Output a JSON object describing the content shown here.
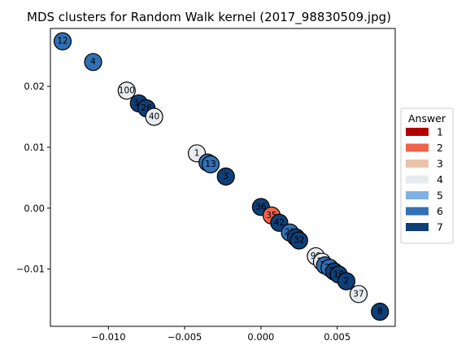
{
  "chart_data": {
    "type": "scatter",
    "title": "MDS clusters for Random Walk kernel (2017_98830509.jpg)",
    "xlabel": "",
    "ylabel": "",
    "xlim": [
      -0.0138,
      0.0088
    ],
    "ylim": [
      -0.0194,
      0.0295
    ],
    "xticks": [
      -0.01,
      -0.005,
      0.0,
      0.005
    ],
    "xtick_labels": [
      "−0.010",
      "−0.005",
      "0.000",
      "0.005"
    ],
    "yticks": [
      -0.01,
      0.0,
      0.01,
      0.02
    ],
    "ytick_labels": [
      "−0.01",
      "0.00",
      "0.01",
      "0.02"
    ],
    "grid": false,
    "legend": {
      "title": "Answer",
      "placement": "center-right outside",
      "entries": [
        {
          "label": "1",
          "color": "#b30000"
        },
        {
          "label": "2",
          "color": "#f0624a"
        },
        {
          "label": "3",
          "color": "#eac2aa"
        },
        {
          "label": "4",
          "color": "#e8ecf1"
        },
        {
          "label": "5",
          "color": "#7fb0e1"
        },
        {
          "label": "6",
          "color": "#3170b3"
        },
        {
          "label": "7",
          "color": "#0f3f77"
        }
      ]
    },
    "points": [
      {
        "label": "12",
        "x": -0.013,
        "y": 0.0274,
        "answer": "6"
      },
      {
        "label": "4",
        "x": -0.011,
        "y": 0.024,
        "answer": "6"
      },
      {
        "label": "100",
        "x": -0.0088,
        "y": 0.0193,
        "answer": "4"
      },
      {
        "label": "34",
        "x": -0.008,
        "y": 0.0172,
        "answer": "7"
      },
      {
        "label": "26",
        "x": -0.0075,
        "y": 0.0164,
        "answer": "7"
      },
      {
        "label": "40",
        "x": -0.007,
        "y": 0.015,
        "answer": "4"
      },
      {
        "label": "1",
        "x": -0.0042,
        "y": 0.009,
        "answer": "4"
      },
      {
        "label": "9",
        "x": -0.0035,
        "y": 0.0075,
        "answer": "6"
      },
      {
        "label": "13",
        "x": -0.0033,
        "y": 0.0072,
        "answer": "6"
      },
      {
        "label": "3",
        "x": -0.0023,
        "y": 0.0052,
        "answer": "7"
      },
      {
        "label": "36",
        "x": 0.0,
        "y": 0.0002,
        "answer": "7"
      },
      {
        "label": "35",
        "x": 0.0007,
        "y": -0.0012,
        "answer": "2"
      },
      {
        "label": "42",
        "x": 0.0012,
        "y": -0.0024,
        "answer": "7"
      },
      {
        "label": "29",
        "x": 0.0019,
        "y": -0.004,
        "answer": "6"
      },
      {
        "label": "30",
        "x": 0.0023,
        "y": -0.0048,
        "answer": "7"
      },
      {
        "label": "32",
        "x": 0.0025,
        "y": -0.0053,
        "answer": "7"
      },
      {
        "label": "99",
        "x": 0.0036,
        "y": -0.0079,
        "answer": "4"
      },
      {
        "label": "14",
        "x": 0.004,
        "y": -0.0088,
        "answer": "4"
      },
      {
        "label": "18",
        "x": 0.0042,
        "y": -0.0094,
        "answer": "6"
      },
      {
        "label": "28",
        "x": 0.0045,
        "y": -0.0098,
        "answer": "6"
      },
      {
        "label": "22",
        "x": 0.0048,
        "y": -0.0104,
        "answer": "7"
      },
      {
        "label": "10",
        "x": 0.0051,
        "y": -0.0109,
        "answer": "7"
      },
      {
        "label": "2",
        "x": 0.0056,
        "y": -0.012,
        "answer": "7"
      },
      {
        "label": "37",
        "x": 0.0064,
        "y": -0.0141,
        "answer": "4"
      },
      {
        "label": "8",
        "x": 0.0078,
        "y": -0.017,
        "answer": "7"
      }
    ]
  }
}
